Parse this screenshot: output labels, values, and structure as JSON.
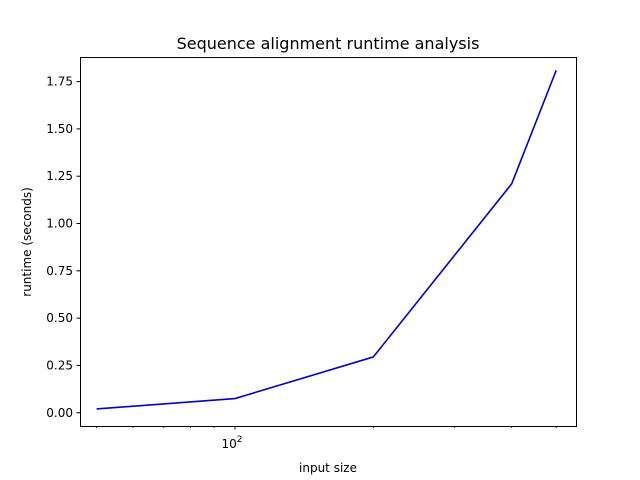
{
  "chart_data": {
    "type": "line",
    "title": "Sequence alignment runtime analysis",
    "xlabel": "input size",
    "ylabel": "runtime (seconds)",
    "xscale": "log",
    "xlim": [
      46,
      552
    ],
    "ylim": [
      -0.07,
      1.88
    ],
    "grid": false,
    "legend": "none",
    "x_ticks_major": [
      {
        "value": 100,
        "base": "10",
        "exp": "2"
      }
    ],
    "x_ticks_minor": [
      50,
      60,
      70,
      80,
      90,
      200,
      300,
      400,
      500
    ],
    "y_ticks": [
      {
        "value": 0.0,
        "label": "0.00"
      },
      {
        "value": 0.25,
        "label": "0.25"
      },
      {
        "value": 0.5,
        "label": "0.50"
      },
      {
        "value": 0.75,
        "label": "0.75"
      },
      {
        "value": 1.0,
        "label": "1.00"
      },
      {
        "value": 1.25,
        "label": "1.25"
      },
      {
        "value": 1.5,
        "label": "1.50"
      },
      {
        "value": 1.75,
        "label": "1.75"
      }
    ],
    "series": [
      {
        "color": "#0000cc",
        "x": [
          50,
          100,
          200,
          400,
          500
        ],
        "y": [
          0.02,
          0.075,
          0.295,
          1.21,
          1.81
        ]
      }
    ]
  }
}
